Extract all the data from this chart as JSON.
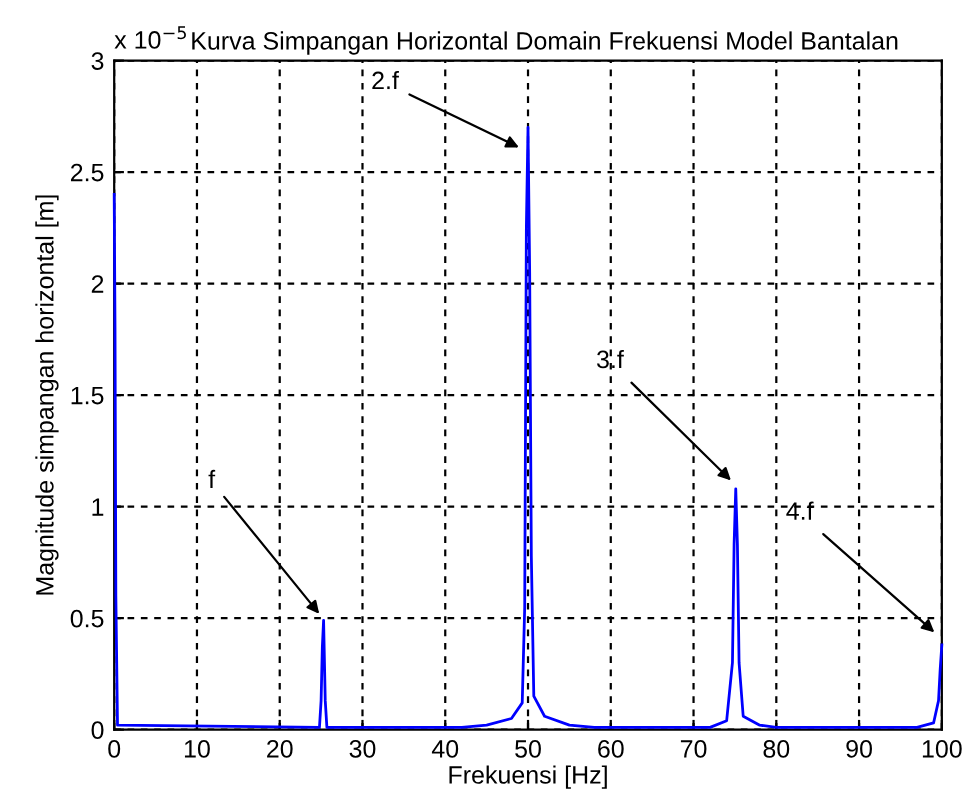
{
  "chart_data": {
    "type": "line",
    "title": "Kurva Simpangan Horizontal Domain Frekuensi Model Bantalan",
    "xlabel": "Frekuensi [Hz]",
    "ylabel": "Magnitude simpangan horizontal [m]",
    "x": [
      0,
      0.1,
      0.2,
      0.4,
      24.8,
      25.0,
      25.15,
      25.3,
      25.5,
      25.7,
      42,
      45,
      48,
      49.3,
      49.6,
      49.8,
      50.0,
      50.2,
      50.4,
      50.7,
      52,
      55,
      58,
      72,
      74,
      74.7,
      74.9,
      75.1,
      75.3,
      75.5,
      76,
      78,
      80,
      97,
      99,
      99.6,
      99.8,
      100
    ],
    "series": [
      {
        "color": "#0000ff",
        "values": [
          2.4,
          1.8,
          0.6,
          0.02,
          0.01,
          0.13,
          0.37,
          0.49,
          0.13,
          0.01,
          0.01,
          0.02,
          0.05,
          0.12,
          0.55,
          2.25,
          2.7,
          2.05,
          0.78,
          0.15,
          0.06,
          0.02,
          0.01,
          0.01,
          0.04,
          0.3,
          0.83,
          1.08,
          0.83,
          0.3,
          0.06,
          0.02,
          0.01,
          0.01,
          0.03,
          0.13,
          0.27,
          0.38
        ]
      }
    ],
    "xlim": [
      0,
      100
    ],
    "ylim": [
      0,
      3
    ],
    "xticks": [
      0,
      10,
      20,
      30,
      40,
      50,
      60,
      70,
      80,
      90,
      100
    ],
    "yticks": [
      0,
      0.5,
      1,
      1.5,
      2,
      2.5,
      3
    ],
    "grid": true,
    "line_style": "solid",
    "marker": "none",
    "annotations": [
      "x 10$^{−5}$",
      {
        "text": "f",
        "x": 25.2,
        "y": 0.5
      },
      {
        "text": "2.f",
        "x": 49.5,
        "y": 2.6
      },
      {
        "text": "3.f",
        "x": 75,
        "y": 1.1
      },
      {
        "text": "4.f",
        "x": 99.6,
        "y": 0.42
      }
    ]
  }
}
